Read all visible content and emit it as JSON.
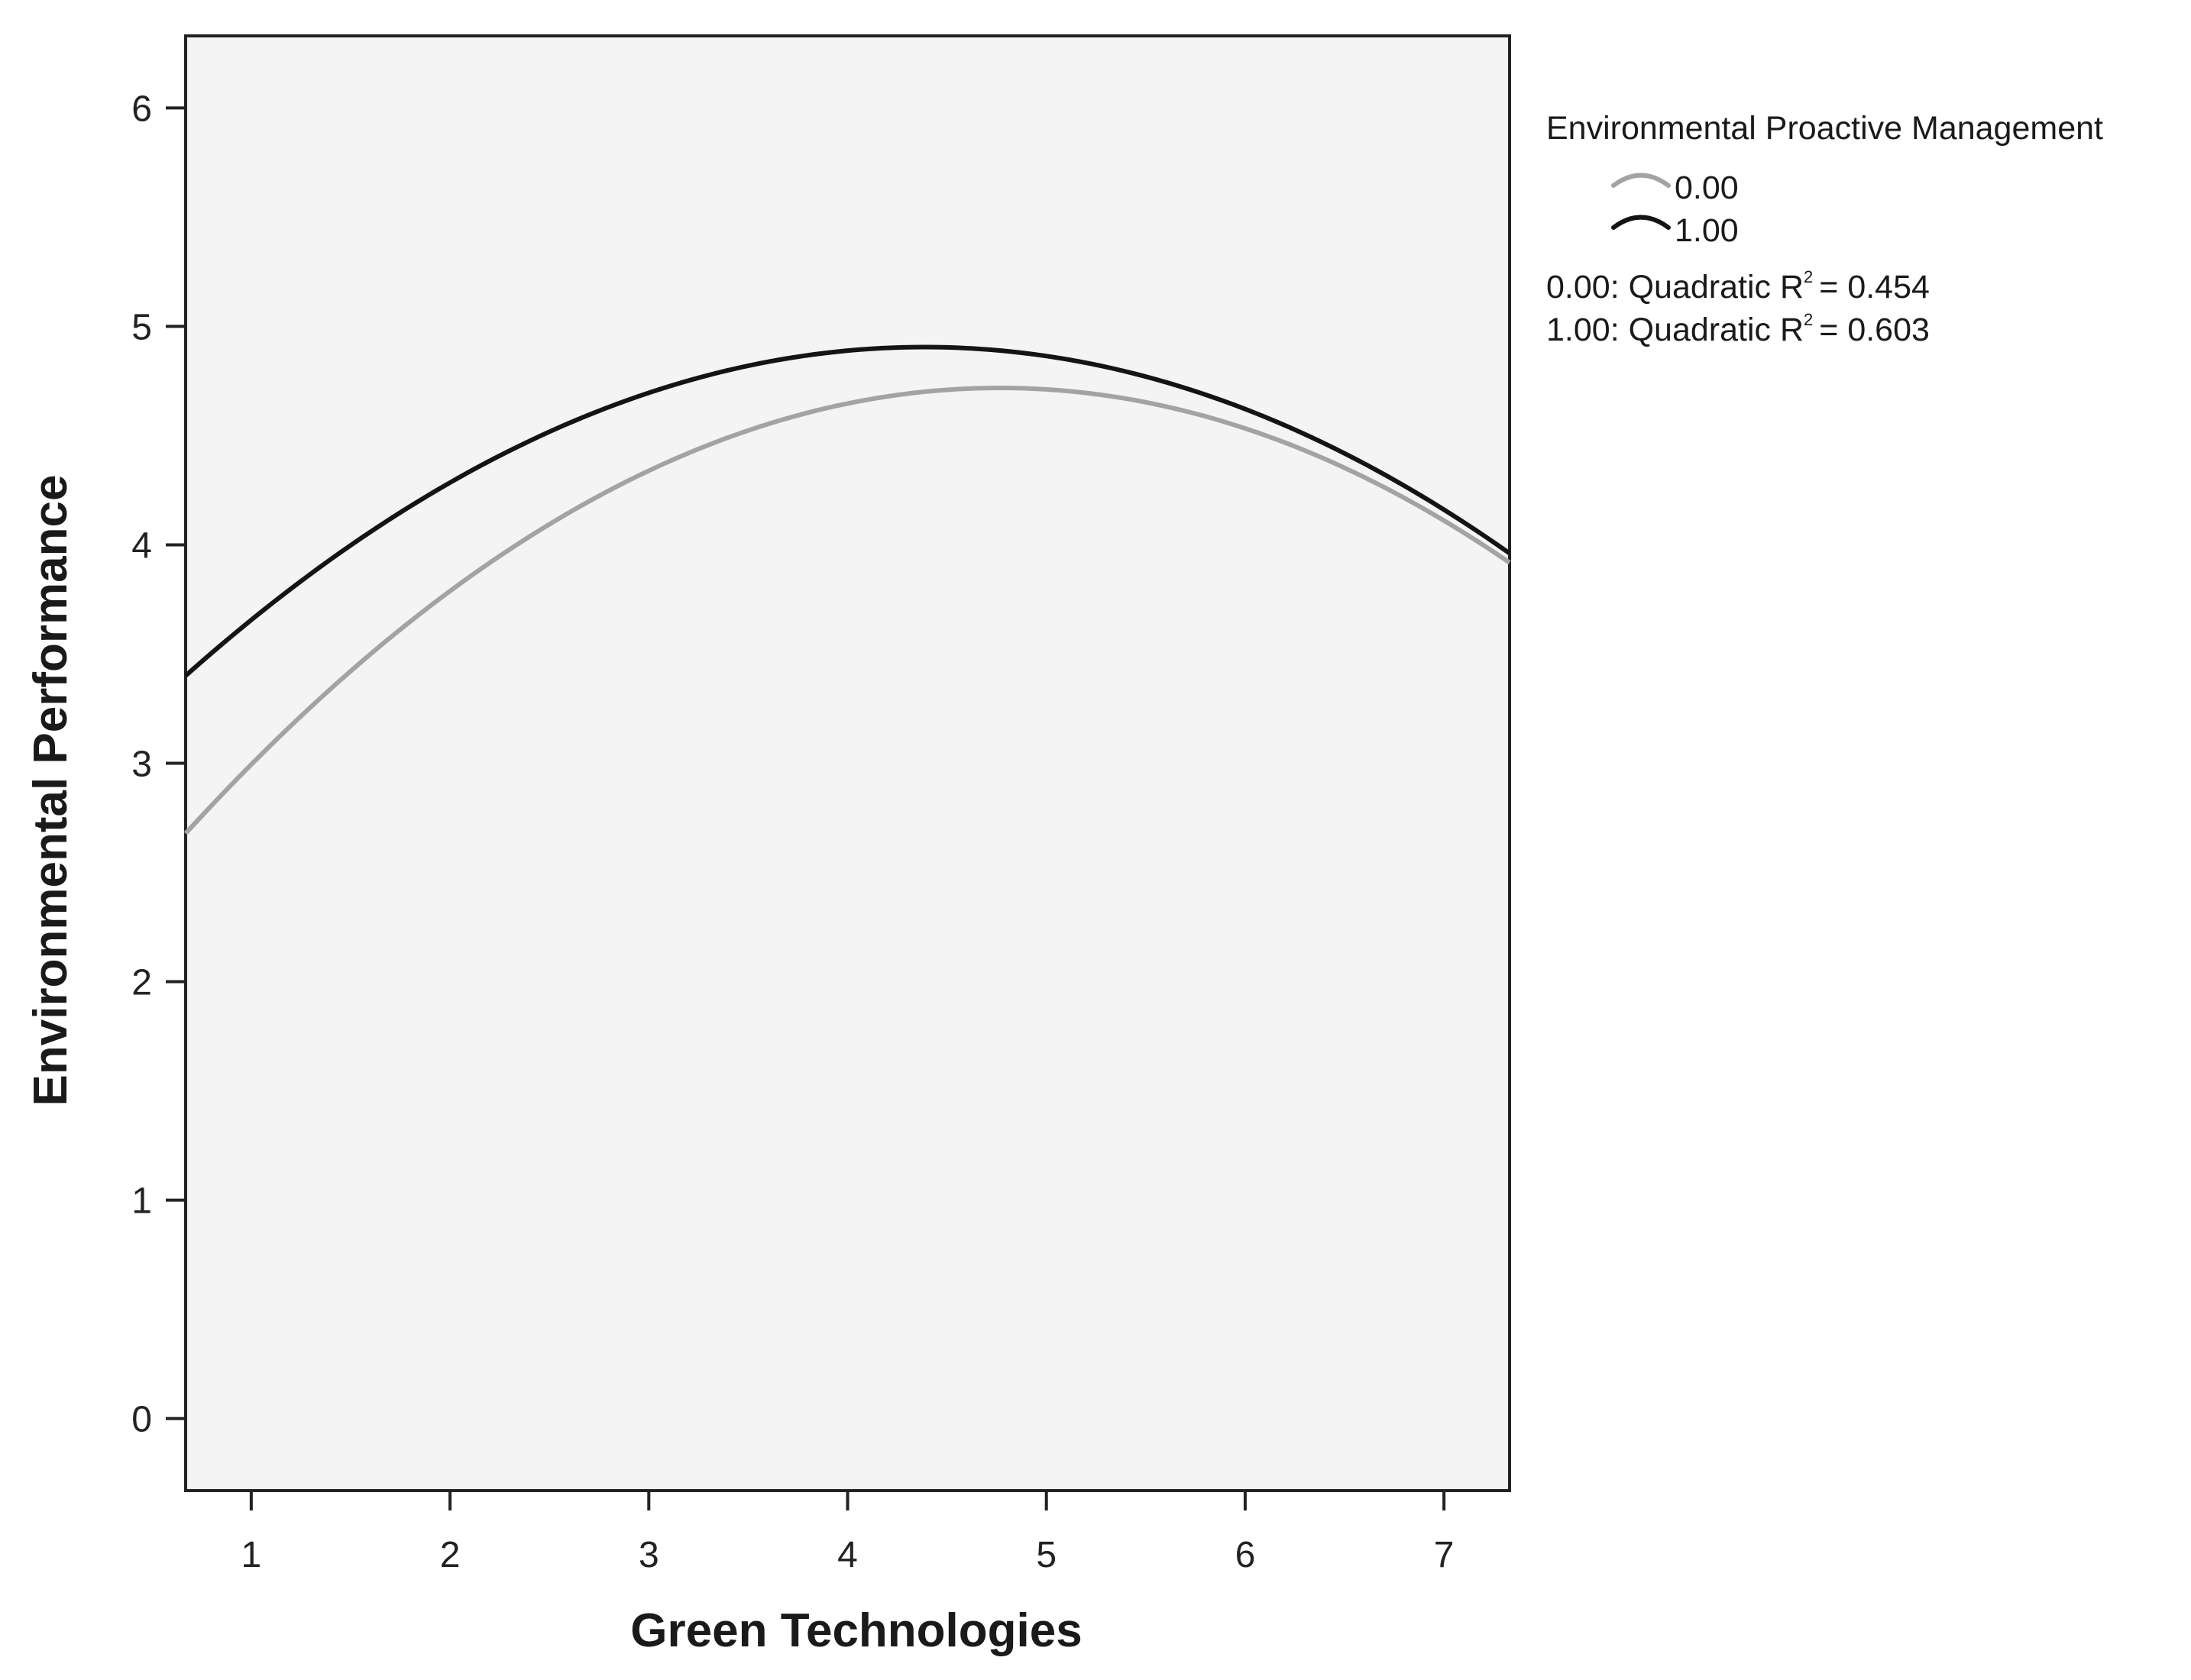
{
  "chart_data": {
    "type": "line",
    "xlabel": "Green Technologies",
    "ylabel": "Environmental Performance",
    "xlim": [
      0.67,
      7.33
    ],
    "ylim": [
      -0.33,
      6.33
    ],
    "xticks": [
      "1",
      "2",
      "3",
      "4",
      "5",
      "6",
      "7"
    ],
    "yticks": [
      "0",
      "1",
      "2",
      "3",
      "4",
      "5",
      "6"
    ],
    "grid": false,
    "legend_title": "Environmental Proactive Management",
    "legend_placement": "right",
    "series": [
      {
        "name": "0.00",
        "color": "#a3a3a3",
        "fit": "quadratic",
        "x": [
          0.67,
          1,
          2,
          3,
          4,
          4.75,
          5,
          6,
          7,
          7.33
        ],
        "y": [
          2.69,
          2.98,
          3.78,
          4.35,
          4.66,
          4.72,
          4.71,
          4.51,
          4.11,
          3.93
        ],
        "r2_label": "0.00: Quadratic R",
        "r2_value": "= 0.454"
      },
      {
        "name": "1.00",
        "color": "#141414",
        "fit": "quadratic",
        "x": [
          0.67,
          1,
          2,
          3,
          4,
          4.35,
          5,
          6,
          7,
          7.33
        ],
        "y": [
          3.41,
          3.65,
          4.28,
          4.69,
          4.89,
          4.91,
          4.87,
          4.62,
          4.16,
          3.96
        ],
        "r2_label": "1.00: Quadratic R",
        "r2_value": "= 0.603"
      }
    ]
  }
}
